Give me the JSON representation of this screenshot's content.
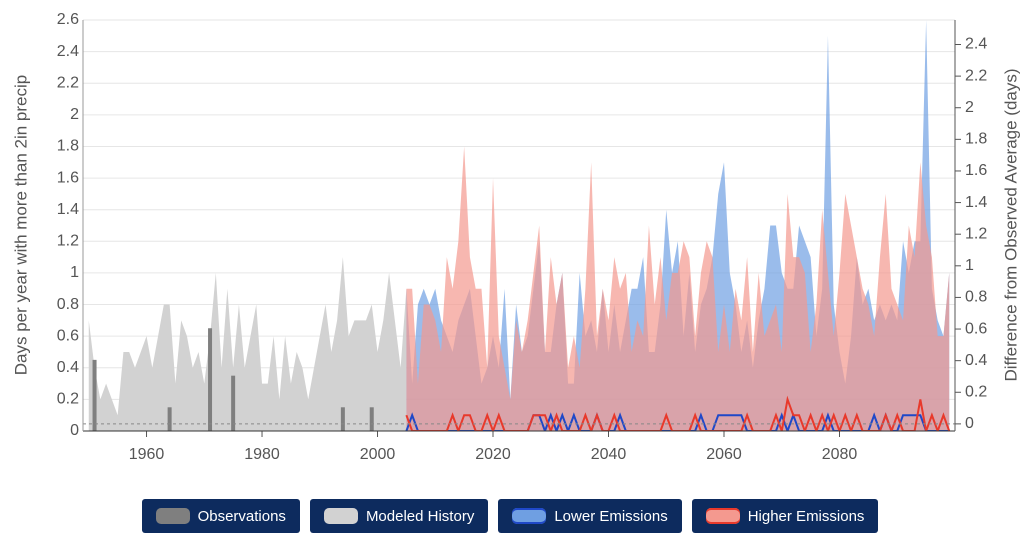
{
  "chart_data": {
    "type": "area",
    "y_label": "Days per year with more than 2in precip",
    "y2_label": "Difference from Observed Average (days)",
    "xlim": [
      1949,
      2100
    ],
    "xticks": [
      1960,
      1980,
      2000,
      2020,
      2040,
      2060,
      2080
    ],
    "ylim": [
      0,
      2.6
    ],
    "yticks": [
      0,
      0.2,
      0.4,
      0.6,
      0.8,
      1,
      1.2,
      1.4,
      1.6,
      1.8,
      2,
      2.2,
      2.4,
      2.6
    ],
    "y2lim": [
      -0.045,
      2.555
    ],
    "y2ticks": [
      0,
      0.2,
      0.4,
      0.6,
      0.8,
      1,
      1.2,
      1.4,
      1.6,
      1.8,
      2,
      2.2,
      2.4
    ],
    "observed_average": 0.045,
    "grid": true,
    "legend": "bottom",
    "series": [
      {
        "name": "Observations",
        "kind": "bar",
        "color": "#7f7f7f",
        "x": [
          1951,
          1964,
          1971,
          1975,
          1994,
          1999
        ],
        "values": [
          0.45,
          0.15,
          0.65,
          0.35,
          0.15,
          0.15
        ]
      },
      {
        "name": "Modeled History",
        "kind": "area",
        "color": "#d2d2d2",
        "x": [
          1950,
          1951,
          1952,
          1953,
          1954,
          1955,
          1956,
          1957,
          1958,
          1959,
          1960,
          1961,
          1962,
          1963,
          1964,
          1965,
          1966,
          1967,
          1968,
          1969,
          1970,
          1971,
          1972,
          1973,
          1974,
          1975,
          1976,
          1977,
          1978,
          1979,
          1980,
          1981,
          1982,
          1983,
          1984,
          1985,
          1986,
          1987,
          1988,
          1989,
          1990,
          1991,
          1992,
          1993,
          1994,
          1995,
          1996,
          1997,
          1998,
          1999,
          2000,
          2001,
          2002,
          2003,
          2004,
          2005
        ],
        "values": [
          0.7,
          0.4,
          0.2,
          0.3,
          0.2,
          0.1,
          0.5,
          0.5,
          0.4,
          0.5,
          0.6,
          0.4,
          0.6,
          0.8,
          0.8,
          0.3,
          0.7,
          0.6,
          0.4,
          0.5,
          0.3,
          0.6,
          1.0,
          0.4,
          0.9,
          0.4,
          0.8,
          0.4,
          0.6,
          0.8,
          0.3,
          0.3,
          0.6,
          0.2,
          0.6,
          0.3,
          0.5,
          0.4,
          0.2,
          0.4,
          0.6,
          0.8,
          0.5,
          0.7,
          1.1,
          0.6,
          0.7,
          0.7,
          0.7,
          0.8,
          0.5,
          0.7,
          1.0,
          0.7,
          0.4,
          0.9
        ]
      },
      {
        "name": "Lower Emissions",
        "kind": "range",
        "color": "#6f9fe2",
        "line_color": "#1f48c8",
        "x": [
          2005,
          2006,
          2007,
          2008,
          2009,
          2010,
          2011,
          2012,
          2013,
          2014,
          2015,
          2016,
          2017,
          2018,
          2019,
          2020,
          2021,
          2022,
          2023,
          2024,
          2025,
          2026,
          2027,
          2028,
          2029,
          2030,
          2031,
          2032,
          2033,
          2034,
          2035,
          2036,
          2037,
          2038,
          2039,
          2040,
          2041,
          2042,
          2043,
          2044,
          2045,
          2046,
          2047,
          2048,
          2049,
          2050,
          2051,
          2052,
          2053,
          2054,
          2055,
          2056,
          2057,
          2058,
          2059,
          2060,
          2061,
          2062,
          2063,
          2064,
          2065,
          2066,
          2067,
          2068,
          2069,
          2070,
          2071,
          2072,
          2073,
          2074,
          2075,
          2076,
          2077,
          2078,
          2079,
          2080,
          2081,
          2082,
          2083,
          2084,
          2085,
          2086,
          2087,
          2088,
          2089,
          2090,
          2091,
          2092,
          2093,
          2094,
          2095,
          2096,
          2097,
          2098,
          2099
        ],
        "values": [
          0.9,
          0.3,
          0.8,
          0.9,
          0.8,
          0.9,
          0.7,
          0.6,
          0.5,
          0.7,
          0.8,
          0.9,
          0.6,
          0.3,
          0.4,
          0.6,
          0.4,
          0.9,
          0.2,
          0.8,
          0.5,
          0.6,
          0.9,
          1.2,
          0.5,
          0.5,
          0.8,
          1.0,
          0.3,
          0.3,
          1.0,
          0.6,
          0.7,
          0.5,
          0.9,
          0.5,
          0.8,
          0.5,
          0.7,
          0.9,
          0.9,
          1.1,
          0.5,
          0.5,
          0.8,
          1.4,
          1.0,
          1.2,
          0.6,
          1.0,
          0.5,
          0.8,
          0.9,
          1.1,
          1.5,
          1.7,
          1.0,
          0.8,
          0.5,
          0.7,
          0.4,
          0.7,
          0.9,
          1.3,
          1.3,
          1.0,
          0.9,
          0.9,
          1.3,
          1.2,
          1.1,
          0.6,
          0.9,
          2.5,
          0.8,
          0.5,
          0.3,
          0.6,
          1.1,
          0.8,
          0.9,
          0.7,
          0.8,
          0.7,
          0.8,
          0.7,
          1.2,
          1.0,
          1.2,
          1.2,
          2.6,
          0.9,
          0.7,
          0.6,
          1.0
        ],
        "median": [
          0,
          0.1,
          0,
          0,
          0,
          0,
          0,
          0,
          0,
          0,
          0,
          0,
          0,
          0,
          0,
          0,
          0,
          0,
          0,
          0,
          0,
          0,
          0.1,
          0.1,
          0,
          0.1,
          0,
          0.1,
          0,
          0.1,
          0,
          0,
          0,
          0.1,
          0,
          0,
          0,
          0.1,
          0,
          0,
          0,
          0,
          0,
          0,
          0,
          0,
          0,
          0,
          0,
          0,
          0,
          0.1,
          0,
          0,
          0.1,
          0.1,
          0.1,
          0.1,
          0.1,
          0,
          0,
          0,
          0,
          0,
          0,
          0.1,
          0,
          0.1,
          0,
          0,
          0,
          0,
          0,
          0.1,
          0,
          0,
          0,
          0,
          0,
          0,
          0,
          0.1,
          0,
          0.1,
          0,
          0,
          0.1,
          0.1,
          0.1,
          0.1,
          0,
          0,
          0,
          0,
          0
        ]
      },
      {
        "name": "Higher Emissions",
        "kind": "range",
        "color": "#f4998f",
        "line_color": "#e8392b",
        "x": [
          2005,
          2006,
          2007,
          2008,
          2009,
          2010,
          2011,
          2012,
          2013,
          2014,
          2015,
          2016,
          2017,
          2018,
          2019,
          2020,
          2021,
          2022,
          2023,
          2024,
          2025,
          2026,
          2027,
          2028,
          2029,
          2030,
          2031,
          2032,
          2033,
          2034,
          2035,
          2036,
          2037,
          2038,
          2039,
          2040,
          2041,
          2042,
          2043,
          2044,
          2045,
          2046,
          2047,
          2048,
          2049,
          2050,
          2051,
          2052,
          2053,
          2054,
          2055,
          2056,
          2057,
          2058,
          2059,
          2060,
          2061,
          2062,
          2063,
          2064,
          2065,
          2066,
          2067,
          2068,
          2069,
          2070,
          2071,
          2072,
          2073,
          2074,
          2075,
          2076,
          2077,
          2078,
          2079,
          2080,
          2081,
          2082,
          2083,
          2084,
          2085,
          2086,
          2087,
          2088,
          2089,
          2090,
          2091,
          2092,
          2093,
          2094,
          2095,
          2096,
          2097,
          2098,
          2099
        ],
        "values": [
          0.9,
          0.9,
          0.3,
          0.8,
          0.8,
          0.7,
          0.5,
          1.1,
          0.9,
          1.2,
          1.8,
          1.1,
          0.9,
          0.9,
          0.4,
          1.6,
          0.6,
          0.4,
          0.2,
          0.7,
          0.5,
          0.7,
          1.0,
          1.3,
          0.5,
          1.1,
          0.8,
          1.0,
          0.4,
          0.6,
          0.4,
          0.9,
          1.7,
          0.6,
          0.9,
          0.7,
          1.1,
          0.9,
          1.0,
          0.5,
          0.7,
          0.6,
          1.3,
          0.8,
          1.1,
          0.7,
          1.0,
          1.0,
          1.2,
          1.1,
          0.6,
          1.0,
          1.2,
          1.1,
          0.5,
          0.8,
          0.5,
          0.9,
          0.7,
          1.1,
          0.5,
          1.0,
          0.6,
          0.7,
          0.8,
          0.5,
          1.5,
          1.1,
          1.1,
          1.0,
          0.5,
          0.8,
          1.4,
          1.0,
          0.6,
          1.0,
          1.5,
          1.3,
          1.1,
          0.9,
          0.8,
          0.6,
          1.1,
          1.5,
          0.9,
          0.8,
          0.7,
          1.3,
          1.1,
          1.7,
          1.3,
          1.1,
          0.6,
          0.6,
          1.0
        ],
        "median": [
          0.1,
          0,
          0,
          0,
          0,
          0,
          0,
          0,
          0.1,
          0,
          0.1,
          0.1,
          0,
          0,
          0.1,
          0,
          0.1,
          0,
          0,
          0,
          0,
          0,
          0.1,
          0.1,
          0.1,
          0,
          0.1,
          0,
          0,
          0,
          0,
          0.1,
          0,
          0.1,
          0,
          0,
          0.1,
          0,
          0,
          0,
          0,
          0,
          0,
          0,
          0,
          0.1,
          0,
          0,
          0,
          0,
          0.1,
          0,
          0,
          0,
          0,
          0,
          0,
          0,
          0,
          0.1,
          0,
          0,
          0,
          0,
          0.1,
          0,
          0.2,
          0.1,
          0.1,
          0,
          0.1,
          0,
          0.1,
          0,
          0.1,
          0,
          0.1,
          0,
          0.1,
          0,
          0,
          0,
          0,
          0.1,
          0,
          0.1,
          0,
          0,
          0,
          0.2,
          0,
          0.1,
          0,
          0.1,
          0
        ]
      }
    ]
  }
}
